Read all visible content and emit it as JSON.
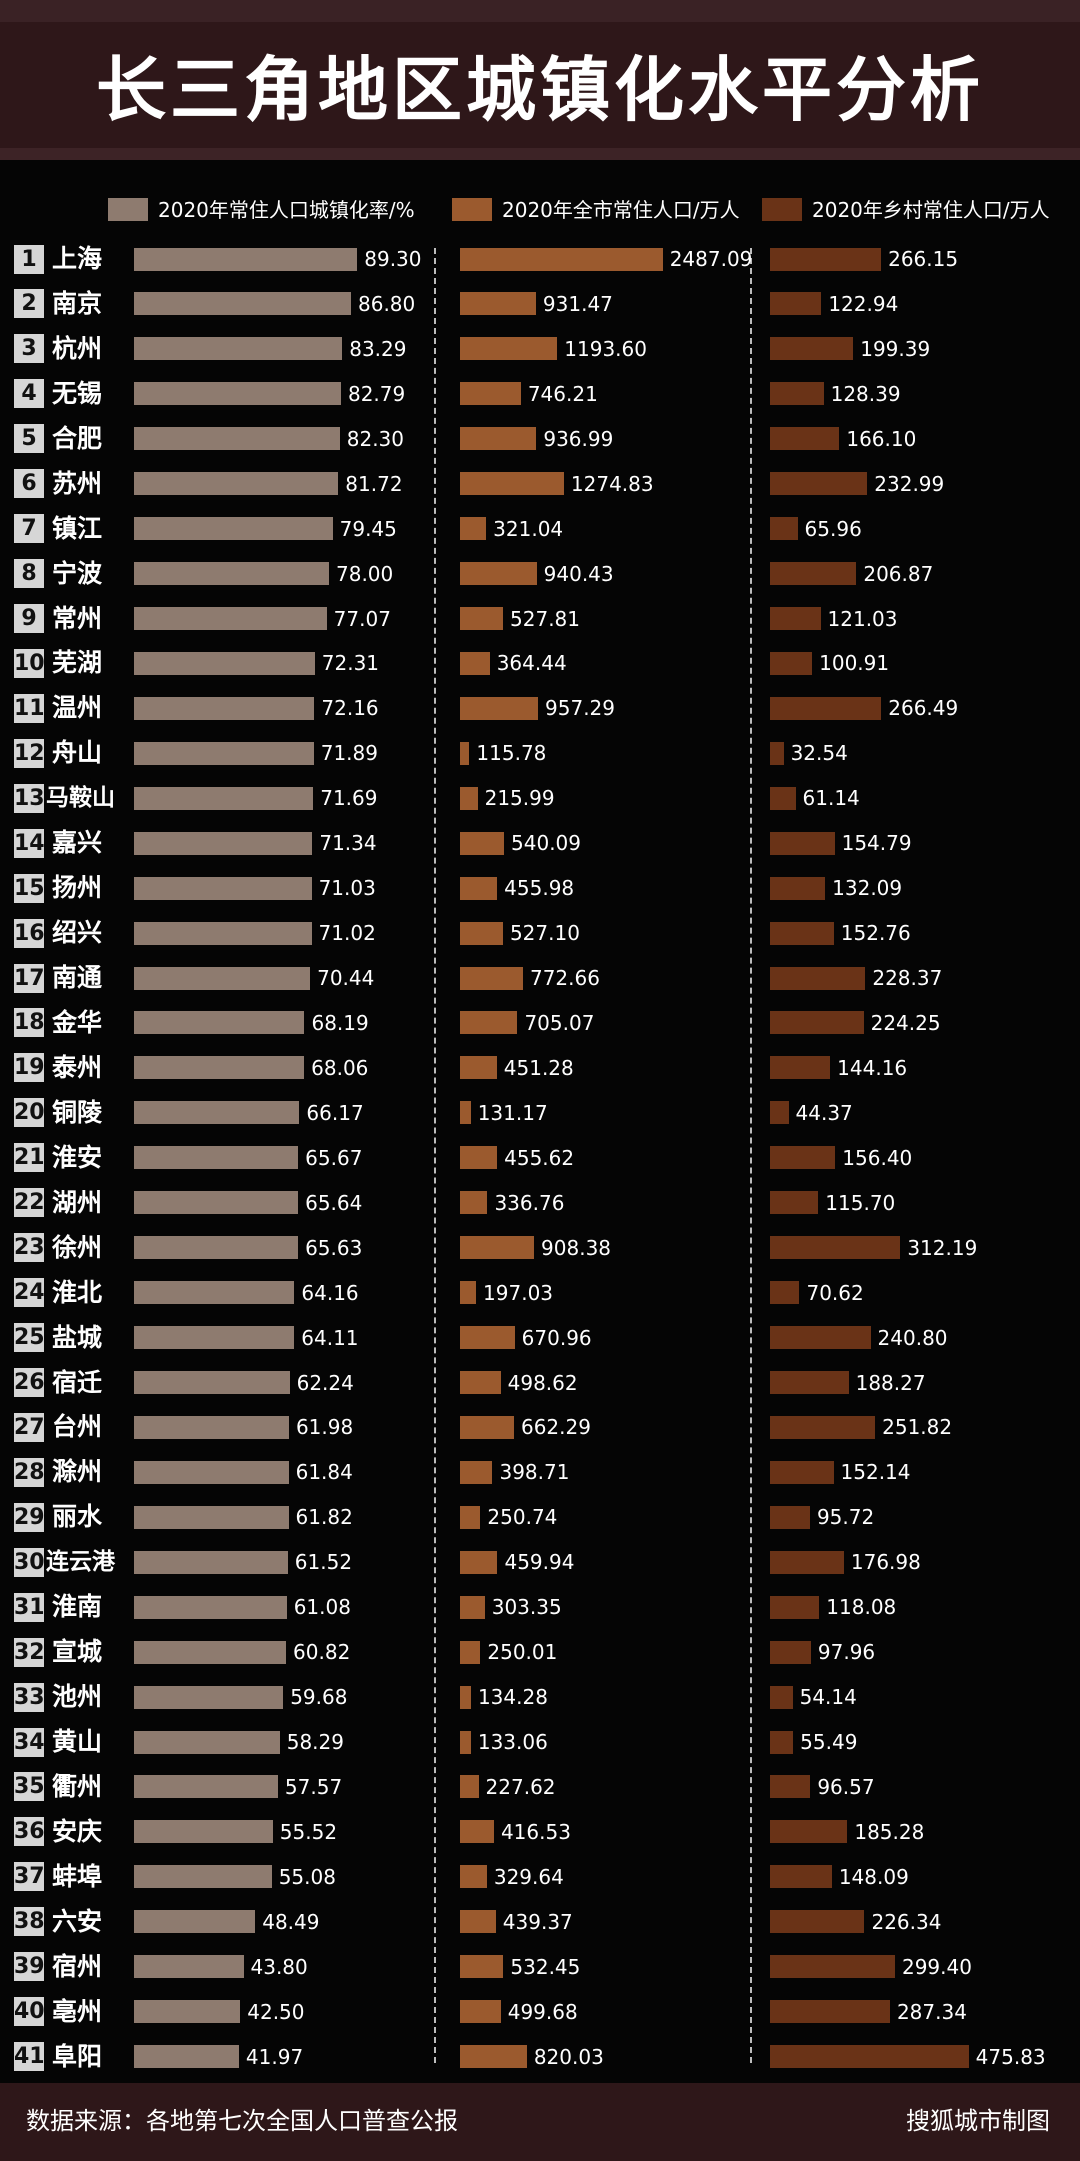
{
  "title": "长三角地区城镇化水平分析",
  "source": "数据来源：各地第七次全国人口普查公报",
  "credit": "搜狐城市制图",
  "colors": {
    "urbanization": "#8e7b6f",
    "total_population": "#9b5a2e",
    "rural_population": "#6a3317"
  },
  "chart_data": {
    "type": "bar",
    "orientation": "horizontal",
    "legend_position": "top",
    "categories": [
      "上海",
      "南京",
      "杭州",
      "无锡",
      "合肥",
      "苏州",
      "镇江",
      "宁波",
      "常州",
      "芜湖",
      "温州",
      "舟山",
      "马鞍山",
      "嘉兴",
      "扬州",
      "绍兴",
      "南通",
      "金华",
      "泰州",
      "铜陵",
      "淮安",
      "湖州",
      "徐州",
      "淮北",
      "盐城",
      "宿迁",
      "台州",
      "滁州",
      "丽水",
      "连云港",
      "淮南",
      "宣城",
      "池州",
      "黄山",
      "衢州",
      "安庆",
      "蚌埠",
      "六安",
      "宿州",
      "亳州",
      "阜阳"
    ],
    "ranks": [
      1,
      2,
      3,
      4,
      5,
      6,
      7,
      8,
      9,
      10,
      11,
      12,
      13,
      14,
      15,
      16,
      17,
      18,
      19,
      20,
      21,
      22,
      23,
      24,
      25,
      26,
      27,
      28,
      29,
      30,
      31,
      32,
      33,
      34,
      35,
      36,
      37,
      38,
      39,
      40,
      41
    ],
    "series": [
      {
        "name": "2020年常住人口城镇化率/%",
        "values": [
          89.3,
          86.8,
          83.29,
          82.79,
          82.3,
          81.72,
          79.45,
          78.0,
          77.07,
          72.31,
          72.16,
          71.89,
          71.69,
          71.34,
          71.03,
          71.02,
          70.44,
          68.19,
          68.06,
          66.17,
          65.67,
          65.64,
          65.63,
          64.16,
          64.11,
          62.24,
          61.98,
          61.84,
          61.82,
          61.52,
          61.08,
          60.82,
          59.68,
          58.29,
          57.57,
          55.52,
          55.08,
          48.49,
          43.8,
          42.5,
          41.97
        ]
      },
      {
        "name": "2020年全市常住人口/万人",
        "values": [
          2487.09,
          931.47,
          1193.6,
          746.21,
          936.99,
          1274.83,
          321.04,
          940.43,
          527.81,
          364.44,
          957.29,
          115.78,
          215.99,
          540.09,
          455.98,
          527.1,
          772.66,
          705.07,
          451.28,
          131.17,
          455.62,
          336.76,
          908.38,
          197.03,
          670.96,
          498.62,
          662.29,
          398.71,
          250.74,
          459.94,
          303.35,
          250.01,
          134.28,
          133.06,
          227.62,
          416.53,
          329.64,
          439.37,
          532.45,
          499.68,
          820.03
        ]
      },
      {
        "name": "2020年乡村常住人口/万人",
        "values": [
          266.15,
          122.94,
          199.39,
          128.39,
          166.1,
          232.99,
          65.96,
          206.87,
          121.03,
          100.91,
          266.49,
          32.54,
          61.14,
          154.79,
          132.09,
          152.76,
          228.37,
          224.25,
          144.16,
          44.37,
          156.4,
          115.7,
          312.19,
          70.62,
          240.8,
          188.27,
          251.82,
          152.14,
          95.72,
          176.98,
          118.08,
          97.96,
          54.14,
          55.49,
          96.57,
          185.28,
          148.09,
          226.34,
          299.4,
          287.34,
          475.83
        ]
      }
    ]
  }
}
